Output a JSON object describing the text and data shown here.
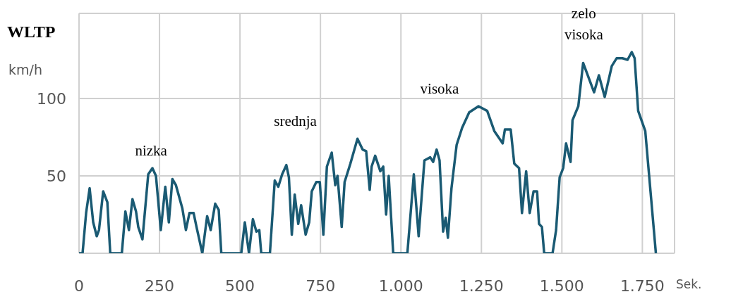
{
  "chart_data": {
    "type": "line",
    "title": "WLTP",
    "xlabel": "Sek.",
    "ylabel": "km/h",
    "x": [
      0,
      11,
      22,
      33,
      44,
      55,
      62,
      75,
      88,
      97,
      133,
      144,
      155,
      166,
      177,
      184,
      197,
      215,
      228,
      239,
      254,
      268,
      279,
      290,
      301,
      321,
      332,
      343,
      356,
      365,
      383,
      398,
      409,
      423,
      434,
      442,
      504,
      515,
      528,
      540,
      551,
      560,
      566,
      593,
      608,
      619,
      631,
      644,
      652,
      661,
      670,
      681,
      690,
      704,
      715,
      723,
      737,
      748,
      759,
      770,
      785,
      796,
      803,
      816,
      825,
      843,
      865,
      881,
      892,
      903,
      909,
      920,
      936,
      945,
      954,
      962,
      976,
      1020,
      1040,
      1055,
      1073,
      1091,
      1100,
      1111,
      1120,
      1131,
      1139,
      1146,
      1157,
      1173,
      1190,
      1212,
      1241,
      1268,
      1290,
      1316,
      1323,
      1341,
      1352,
      1367,
      1376,
      1389,
      1400,
      1412,
      1423,
      1429,
      1438,
      1445,
      1471,
      1482,
      1493,
      1504,
      1513,
      1527,
      1533,
      1551,
      1566,
      1600,
      1615,
      1633,
      1655,
      1670,
      1688,
      1704,
      1717,
      1726,
      1737,
      1759,
      1792
    ],
    "series": [
      {
        "color": "#1a5a73",
        "values": [
          0,
          0,
          26,
          42,
          20,
          11,
          15,
          40,
          33,
          0,
          0,
          27,
          15,
          35,
          27,
          17,
          9,
          51,
          55,
          50,
          15,
          43,
          20,
          48,
          44,
          29,
          15,
          26,
          26,
          17,
          0,
          24,
          15,
          32,
          28,
          0,
          0,
          20,
          0,
          22,
          14,
          15,
          0,
          0,
          47,
          43,
          51,
          57,
          49,
          12,
          38,
          19,
          31,
          12,
          20,
          40,
          46,
          46,
          12,
          56,
          65,
          44,
          50,
          17,
          46,
          58,
          74,
          67,
          66,
          41,
          56,
          63,
          53,
          56,
          25,
          50,
          0,
          0,
          51,
          11,
          60,
          62,
          59,
          67,
          60,
          14,
          23,
          10,
          42,
          70,
          81,
          91,
          95,
          92,
          79,
          71,
          80,
          80,
          58,
          55,
          26,
          53,
          26,
          40,
          40,
          19,
          17,
          0,
          0,
          15,
          49,
          55,
          71,
          59,
          86,
          95,
          123,
          104,
          115,
          101,
          121,
          126,
          126,
          125,
          130,
          126,
          92,
          79,
          0
        ]
      }
    ],
    "xlim": [
      0,
      1850
    ],
    "xticks": [
      0,
      250,
      500,
      750,
      {
        "value": 1000,
        "label": "1.000"
      },
      {
        "value": 1250,
        "label": "1.250"
      },
      {
        "value": 1500,
        "label": "1.500"
      },
      {
        "value": 1750,
        "label": "1.750"
      }
    ],
    "ylim": [
      0,
      155
    ],
    "yticks": [
      50,
      100
    ],
    "grid": true,
    "marker": "none",
    "line_style": "solid",
    "annotations": [
      "nizka",
      "srednja",
      "visoka",
      "zelo visoka"
    ]
  }
}
